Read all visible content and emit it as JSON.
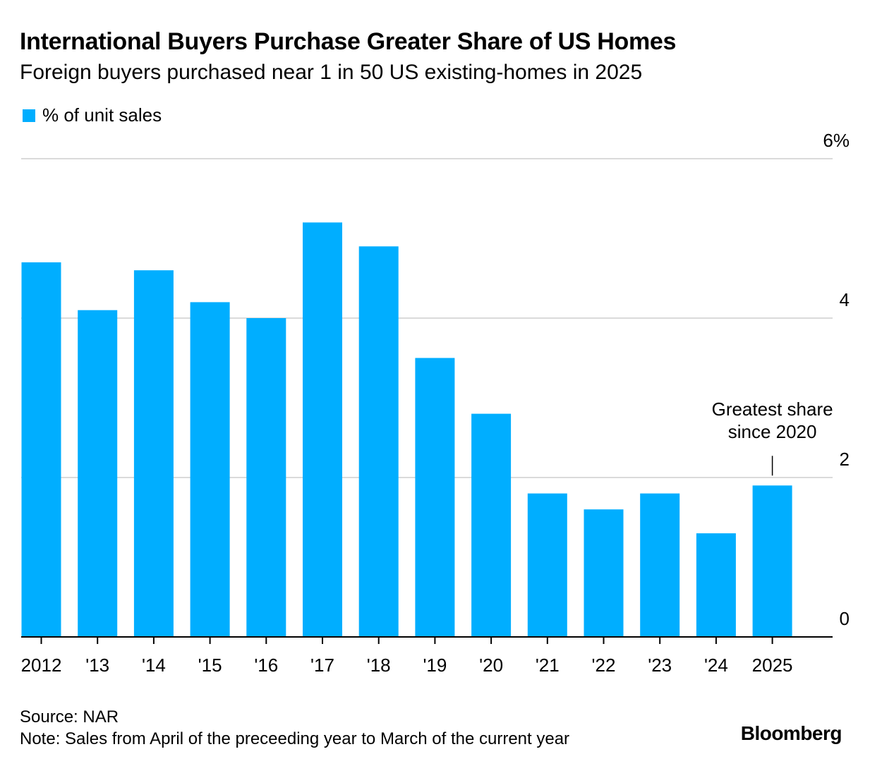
{
  "header": {
    "title": "International Buyers Purchase Greater Share of US Homes",
    "subtitle": "Foreign buyers purchased near 1 in 50 US existing-homes in 2025"
  },
  "colors": {
    "bar": "#00AEFF",
    "grid": "#DADADA",
    "axis": "#000000",
    "text": "#000000"
  },
  "chart_data": {
    "type": "bar",
    "categories": [
      "2012",
      "'13",
      "'14",
      "'15",
      "'16",
      "'17",
      "'18",
      "'19",
      "'20",
      "'21",
      "'22",
      "'23",
      "'24",
      "2025"
    ],
    "series": [
      {
        "name": "% of unit sales",
        "values": [
          4.7,
          4.1,
          4.6,
          4.2,
          4.0,
          5.2,
          4.9,
          3.5,
          2.8,
          1.8,
          1.6,
          1.8,
          1.3,
          1.9
        ]
      }
    ],
    "ylim": [
      0,
      6
    ],
    "yticks": [
      0,
      2,
      4,
      6
    ],
    "ytick_labels": [
      "0",
      "2",
      "4",
      "6%"
    ],
    "grid": true,
    "legend_position": "top-left",
    "yaxis_position": "right",
    "annotation": {
      "category": "2025",
      "lines": [
        "Greatest share",
        "since 2020"
      ]
    }
  },
  "footer": {
    "source": "Source: NAR",
    "note": "Note: Sales from April of the preceeding year to March of the current year",
    "logo": "Bloomberg"
  }
}
